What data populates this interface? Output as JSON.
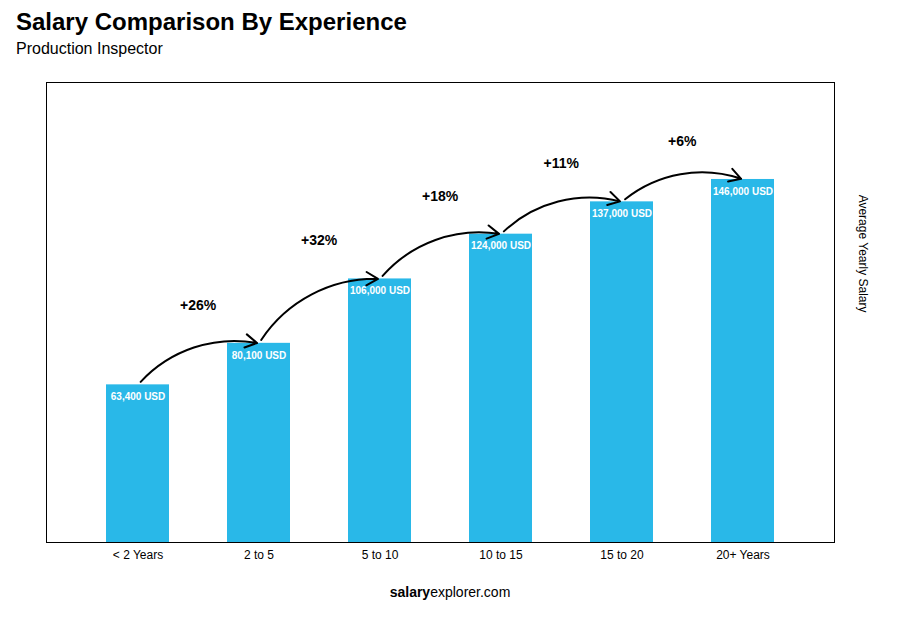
{
  "chart_data": {
    "type": "bar",
    "title": "Salary Comparison By Experience",
    "subtitle": "Production Inspector",
    "categories": [
      "< 2 Years",
      "2 to 5",
      "5 to 10",
      "10 to 15",
      "15 to 20",
      "20+ Years"
    ],
    "values": [
      63400,
      80100,
      106000,
      124000,
      137000,
      146000
    ],
    "value_labels": [
      "63,400 USD",
      "80,100 USD",
      "106,000 USD",
      "124,000 USD",
      "137,000 USD",
      "146,000 USD"
    ],
    "data_labels": true,
    "color": "#29B8E8",
    "ylabel": "Average Yearly Salary",
    "ylim": [
      0,
      185000
    ],
    "yticks": [],
    "tick_labels": "x",
    "grid": false,
    "annotations": [
      "+26%",
      "+32%",
      "+18%",
      "+11%",
      "+6%"
    ],
    "footer": [
      "salary",
      "explorer.com"
    ]
  }
}
